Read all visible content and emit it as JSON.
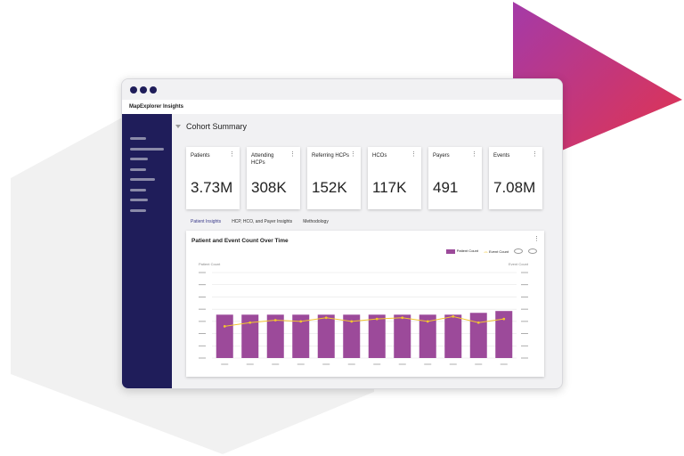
{
  "window": {
    "app_title": "MapExplorer Insights"
  },
  "page": {
    "title": "Cohort Summary"
  },
  "cards": [
    {
      "label": "Patients",
      "value": "3.73M"
    },
    {
      "label": "Attending HCPs",
      "value": "308K"
    },
    {
      "label": "Referring HCPs",
      "value": "152K"
    },
    {
      "label": "HCOs",
      "value": "117K"
    },
    {
      "label": "Payers",
      "value": "491"
    },
    {
      "label": "Events",
      "value": "7.08M"
    }
  ],
  "tabs": [
    {
      "label": "Patient Insights",
      "active": true
    },
    {
      "label": "HCP, HCO, and Payer Insights"
    },
    {
      "label": "Methodology"
    }
  ],
  "colors": {
    "sidebar": "#1f1d5a",
    "bar": "#9c4a9a",
    "line": "#f2c530"
  },
  "chart_data": {
    "type": "bar",
    "title": "Patient and Event Count Over Time",
    "ylabel": "Patient Count",
    "y2label": "Event Count",
    "ylim": [
      0,
      7
    ],
    "grid": true,
    "legend": "top-right",
    "series": [
      {
        "name": "Patient Count",
        "type": "bar",
        "values": [
          3.55,
          3.55,
          3.55,
          3.55,
          3.55,
          3.55,
          3.55,
          3.55,
          3.55,
          3.55,
          3.7,
          3.85
        ]
      },
      {
        "name": "Event Count",
        "type": "line",
        "values": [
          2.6,
          2.9,
          3.1,
          3.0,
          3.3,
          3.0,
          3.2,
          3.3,
          3.0,
          3.4,
          2.9,
          3.2
        ]
      }
    ]
  }
}
